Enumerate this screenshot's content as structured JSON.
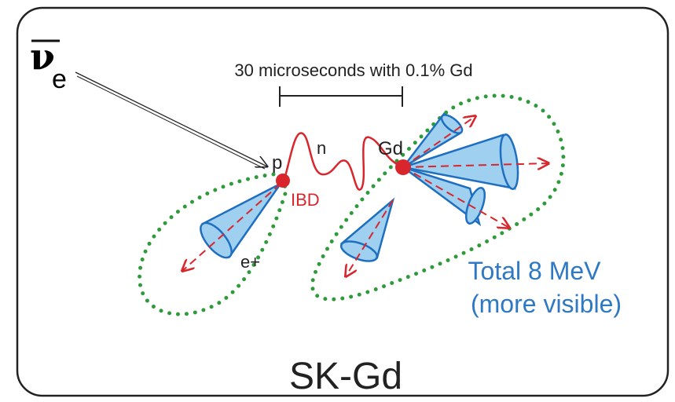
{
  "nu_label": {
    "symbol": "ν",
    "subscript": "e"
  },
  "scale_label": "30 microseconds with 0.1% Gd",
  "labels": {
    "proton": "p",
    "neutron": "n",
    "gadolinium": "Gd",
    "ibd": "IBD",
    "positron": "e+"
  },
  "energy_note": {
    "line1": "Total 8 MeV",
    "line2": "(more visible)"
  },
  "footer": "SK-Gd"
}
